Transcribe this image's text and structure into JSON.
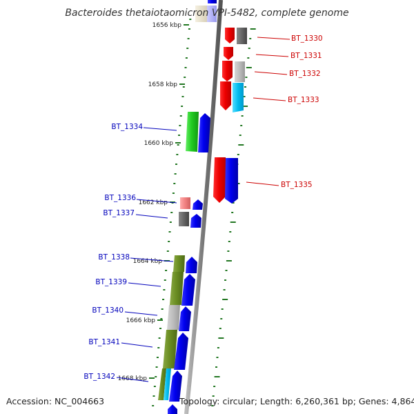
{
  "title": "Bacteroides thetaiotaomicron VPI-5482, complete genome",
  "footer": {
    "accession": "Accession: NC_004663",
    "summary": "Topology: circular; Length: 6,260,361 bp; Genes: 4,864"
  },
  "colors": {
    "forward_label": "#cc0000",
    "reverse_label": "#0000bb",
    "backbone": "#888888",
    "tick": "#227722"
  },
  "kbp_markers": [
    "1656 kbp",
    "1658 kbp",
    "1660 kbp",
    "1662 kbp",
    "1664 kbp",
    "1666 kbp",
    "1668 kbp"
  ],
  "genes_forward": [
    "BT_1330",
    "BT_1331",
    "BT_1332",
    "BT_1333",
    "BT_1335"
  ],
  "genes_reverse": [
    "BT_1334",
    "BT_1336",
    "BT_1337",
    "BT_1338",
    "BT_1339",
    "BT_1340",
    "BT_1341",
    "BT_1342"
  ]
}
